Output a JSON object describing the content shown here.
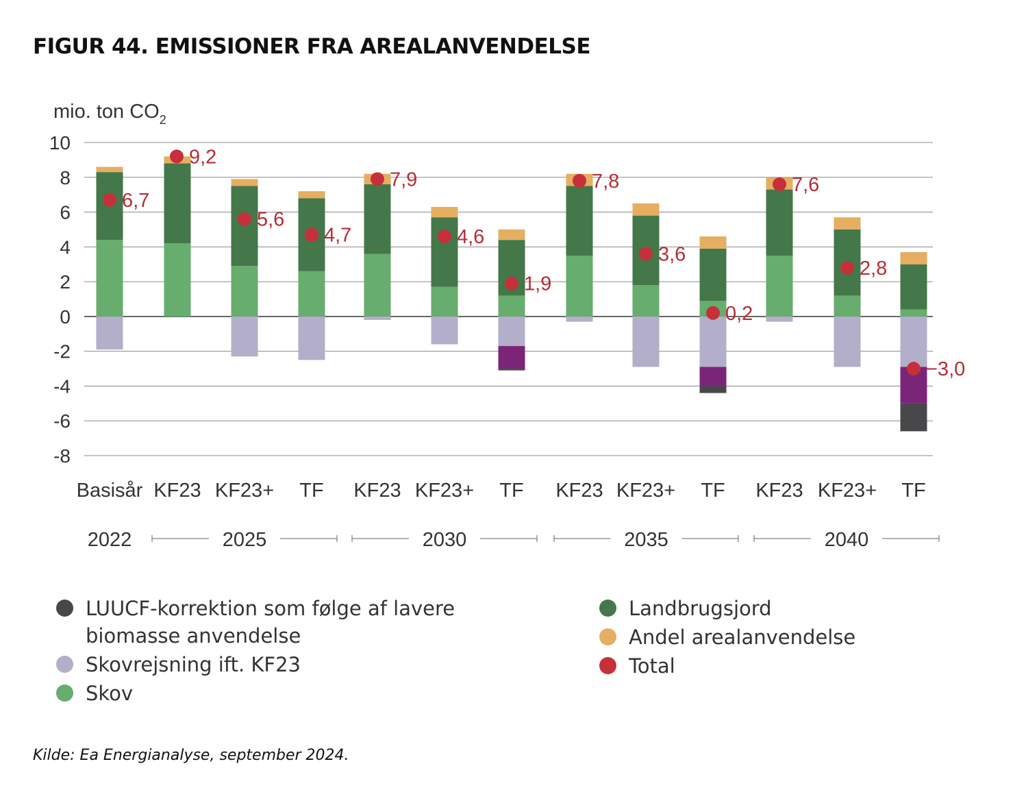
{
  "title": "FIGUR 44. EMISSIONER FRA AREALANVENDELSE",
  "source": "Kilde: Ea Energianalyse, september 2024.",
  "colors": {
    "luucf": "#48474a",
    "skovrejsning": "#b3aec9",
    "skov": "#67ad6d",
    "landbrugsjord": "#44774a",
    "andel": "#e6ae60",
    "purple": "#7b2578",
    "total": "#c6303a",
    "grid": "#555555"
  },
  "legend": {
    "left": [
      {
        "label": "LUUCF-korrektion som følge af lavere biomasse anvendelse",
        "color": "#48474a"
      },
      {
        "label": "Skovrejsning ift. KF23",
        "color": "#b3aec9"
      },
      {
        "label": "Skov",
        "color": "#67ad6d"
      }
    ],
    "right": [
      {
        "label": "Landbrugsjord",
        "color": "#44774a"
      },
      {
        "label": "Andel arealanvendelse",
        "color": "#e6ae60"
      },
      {
        "label": "Total",
        "color": "#c6303a"
      }
    ]
  },
  "chart_data": {
    "type": "bar",
    "stacked": true,
    "ylabel": "mio. ton CO",
    "ylabel_sub": "2",
    "ylim": [
      -8,
      10
    ],
    "yticks": [
      10,
      8,
      6,
      4,
      2,
      0,
      -2,
      -4,
      -6,
      -8
    ],
    "grid": true,
    "categories": [
      "Basisår",
      "KF23",
      "KF23+",
      "TF",
      "KF23",
      "KF23+",
      "TF",
      "KF23",
      "KF23+",
      "TF",
      "KF23",
      "KF23+",
      "TF"
    ],
    "year_groups": [
      {
        "year": "2022",
        "from": 0,
        "to": 0
      },
      {
        "year": "2025",
        "from": 1,
        "to": 3
      },
      {
        "year": "2030",
        "from": 4,
        "to": 6
      },
      {
        "year": "2035",
        "from": 7,
        "to": 9
      },
      {
        "year": "2040",
        "from": 10,
        "to": 12
      }
    ],
    "series": [
      {
        "name": "Skov",
        "values": [
          4.4,
          4.2,
          2.9,
          2.6,
          3.6,
          1.7,
          1.2,
          3.5,
          1.8,
          0.9,
          3.5,
          1.2,
          0.4
        ]
      },
      {
        "name": "Landbrugsjord",
        "values": [
          3.9,
          4.6,
          4.6,
          4.2,
          4.0,
          4.0,
          3.2,
          4.0,
          4.0,
          3.0,
          3.8,
          3.8,
          2.6
        ]
      },
      {
        "name": "Andel arealanvendelse",
        "values": [
          0.3,
          0.4,
          0.4,
          0.4,
          0.6,
          0.6,
          0.6,
          0.7,
          0.7,
          0.7,
          0.7,
          0.7,
          0.7
        ]
      },
      {
        "name": "Skovrejsning ift. KF23",
        "values": [
          -1.9,
          0,
          -2.3,
          -2.5,
          -0.2,
          -1.6,
          -1.7,
          -0.3,
          -2.9,
          -2.9,
          -0.3,
          -2.9,
          -2.9
        ]
      },
      {
        "name": "purple",
        "values": [
          0,
          0,
          0,
          0,
          0,
          0,
          -1.3,
          0,
          0,
          -1.1,
          0,
          0,
          -2.1
        ]
      },
      {
        "name": "LUUCF-korrektion som følge af lavere biomasse anvendelse",
        "values": [
          0,
          0,
          0,
          0,
          0,
          0,
          -0.1,
          0,
          0,
          -0.4,
          0,
          0,
          -1.6
        ]
      }
    ],
    "totals": [
      6.7,
      9.2,
      5.6,
      4.7,
      7.9,
      4.6,
      1.9,
      7.8,
      3.6,
      0.2,
      7.6,
      2.8,
      -3.0
    ],
    "total_labels": [
      "6,7",
      "9,2",
      "5,6",
      "4,7",
      "7,9",
      "4,6",
      "1,9",
      "7,8",
      "3,6",
      "0,2",
      "7,6",
      "2,8",
      "−3,0"
    ]
  }
}
